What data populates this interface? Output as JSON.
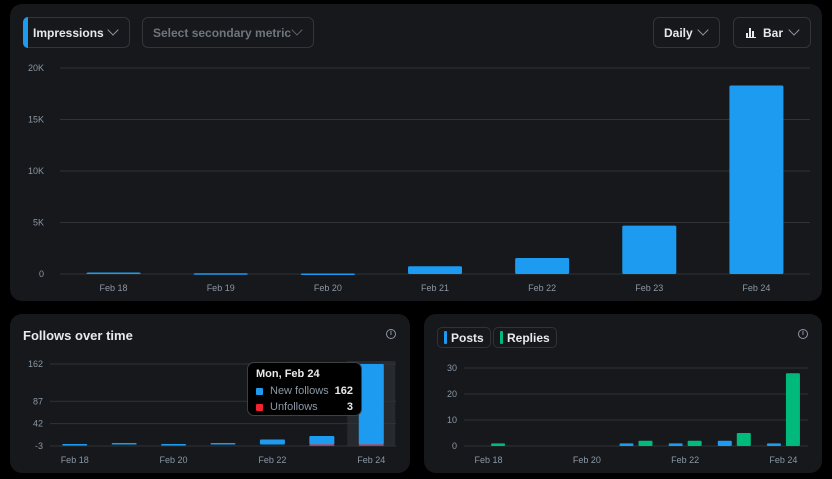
{
  "top": {
    "metric_label": "Impressions",
    "secondary_placeholder": "Select secondary metric",
    "period_label": "Daily",
    "type_label": "Bar"
  },
  "follows": {
    "title": "Follows over time"
  },
  "posts": {
    "posts_label": "Posts",
    "replies_label": "Replies"
  },
  "tooltip": {
    "date": "Mon, Feb 24",
    "rows": [
      {
        "label": "New follows",
        "value": "162",
        "color": "#1d9bf0"
      },
      {
        "label": "Unfollows",
        "value": "3",
        "color": "#f4212e"
      }
    ]
  },
  "colors": {
    "blue": "#1d9bf0",
    "green": "#00ba7c",
    "red": "#f4212e"
  },
  "chart_data": [
    {
      "type": "bar",
      "categories": [
        "Feb 18",
        "Feb 19",
        "Feb 20",
        "Feb 21",
        "Feb 22",
        "Feb 23",
        "Feb 24"
      ],
      "series": [
        {
          "values": [
            150,
            70,
            50,
            750,
            1550,
            4700,
            18300
          ]
        }
      ],
      "y_ticks": [
        "0",
        "5K",
        "10K",
        "15K",
        "20K"
      ],
      "ylim": [
        0,
        20000
      ],
      "grid": true
    },
    {
      "type": "bar",
      "title": "Follows over time",
      "categories": [
        "Feb 18",
        "Feb 19",
        "Feb 20",
        "Feb 21",
        "Feb 22",
        "Feb 23",
        "Feb 24"
      ],
      "x_tick_labels": [
        "Feb 18",
        "Feb 20",
        "Feb 22",
        "Feb 24"
      ],
      "series": [
        {
          "name": "New follows",
          "values": [
            1,
            3,
            1,
            3,
            10,
            17,
            162
          ]
        },
        {
          "name": "Unfollows",
          "values": [
            0,
            0,
            0,
            0,
            0,
            1,
            3
          ]
        }
      ],
      "y_ticks": [
        "-3",
        "42",
        "87",
        "162"
      ],
      "ylim": [
        -3,
        162
      ],
      "grid": true
    },
    {
      "type": "bar",
      "categories": [
        "Feb 18",
        "Feb 19",
        "Feb 20",
        "Feb 21",
        "Feb 22",
        "Feb 23",
        "Feb 24"
      ],
      "x_tick_labels": [
        "Feb 18",
        "Feb 20",
        "Feb 22",
        "Feb 24"
      ],
      "series": [
        {
          "name": "Posts",
          "values": [
            0,
            0,
            0,
            1,
            1,
            2,
            1
          ]
        },
        {
          "name": "Replies",
          "values": [
            1,
            0,
            0,
            2,
            2,
            5,
            28
          ]
        }
      ],
      "y_ticks": [
        "0",
        "10",
        "20",
        "30"
      ],
      "ylim": [
        0,
        30
      ],
      "grid": true
    }
  ]
}
